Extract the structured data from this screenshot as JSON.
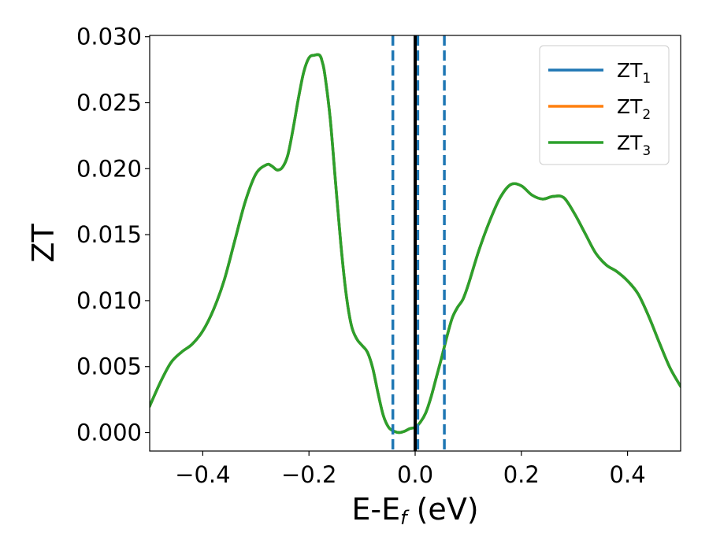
{
  "chart_data": {
    "type": "line",
    "xlabel": {
      "main": "E-E",
      "sub": "f",
      "unit": " (eV)"
    },
    "ylabel": "ZT",
    "xlim": [
      -0.5,
      0.5
    ],
    "ylim": [
      -0.0014,
      0.0301
    ],
    "xticks": [
      -0.4,
      -0.2,
      0.0,
      0.2,
      0.4
    ],
    "xtick_labels": [
      "−0.4",
      "−0.2",
      "0.0",
      "0.2",
      "0.4"
    ],
    "yticks": [
      0.0,
      0.005,
      0.01,
      0.015,
      0.02,
      0.025,
      0.03
    ],
    "ytick_labels": [
      "0.000",
      "0.005",
      "0.010",
      "0.015",
      "0.020",
      "0.025",
      "0.030"
    ],
    "grid": false,
    "legend_position": "top-right",
    "colors": {
      "zt1": "#1f77b4",
      "zt2": "#ff7f0e",
      "zt3": "#2ca02c",
      "fermi": "#000000"
    },
    "vlines": [
      {
        "x": -0.042,
        "style": "dashed",
        "color": "#1f77b4"
      },
      {
        "x": 0.005,
        "style": "dashed",
        "color": "#1f77b4"
      },
      {
        "x": 0.055,
        "style": "dashed",
        "color": "#1f77b4"
      },
      {
        "x": 0.0,
        "style": "solid",
        "color": "#000000"
      }
    ],
    "x": [
      -0.5,
      -0.48,
      -0.46,
      -0.44,
      -0.42,
      -0.4,
      -0.38,
      -0.36,
      -0.34,
      -0.32,
      -0.3,
      -0.28,
      -0.27,
      -0.26,
      -0.25,
      -0.24,
      -0.23,
      -0.22,
      -0.21,
      -0.2,
      -0.19,
      -0.18,
      -0.175,
      -0.17,
      -0.16,
      -0.15,
      -0.14,
      -0.13,
      -0.12,
      -0.11,
      -0.1,
      -0.09,
      -0.08,
      -0.07,
      -0.06,
      -0.05,
      -0.04,
      -0.03,
      -0.02,
      -0.01,
      0.0,
      0.01,
      0.02,
      0.03,
      0.04,
      0.05,
      0.06,
      0.07,
      0.08,
      0.09,
      0.1,
      0.12,
      0.14,
      0.16,
      0.18,
      0.2,
      0.22,
      0.24,
      0.26,
      0.28,
      0.3,
      0.32,
      0.34,
      0.36,
      0.38,
      0.4,
      0.42,
      0.44,
      0.46,
      0.48,
      0.5
    ],
    "series": [
      {
        "name": "ZT",
        "sub": "1",
        "color_key": "zt1",
        "values": [
          0.002,
          0.0038,
          0.0053,
          0.0061,
          0.0067,
          0.0077,
          0.0093,
          0.0115,
          0.0145,
          0.0175,
          0.0196,
          0.0203,
          0.0202,
          0.0199,
          0.0201,
          0.021,
          0.023,
          0.0253,
          0.0273,
          0.0284,
          0.0286,
          0.0286,
          0.0281,
          0.0271,
          0.0238,
          0.019,
          0.0143,
          0.0105,
          0.0081,
          0.0071,
          0.0066,
          0.0061,
          0.0049,
          0.003,
          0.0013,
          0.0004,
          0.0001,
          0.0,
          0.0001,
          0.0003,
          0.0004,
          0.0008,
          0.0015,
          0.0027,
          0.0042,
          0.0057,
          0.0073,
          0.0087,
          0.0095,
          0.0101,
          0.0112,
          0.0138,
          0.016,
          0.0178,
          0.0188,
          0.0187,
          0.018,
          0.0177,
          0.0179,
          0.0178,
          0.0166,
          0.0151,
          0.0136,
          0.0127,
          0.0122,
          0.0115,
          0.0105,
          0.0088,
          0.0068,
          0.0049,
          0.0035
        ]
      },
      {
        "name": "ZT",
        "sub": "2",
        "color_key": "zt2",
        "values": [
          0.002,
          0.0038,
          0.0053,
          0.0061,
          0.0067,
          0.0077,
          0.0093,
          0.0115,
          0.0145,
          0.0175,
          0.0196,
          0.0203,
          0.0202,
          0.0199,
          0.0201,
          0.021,
          0.023,
          0.0253,
          0.0273,
          0.0284,
          0.0286,
          0.0286,
          0.0281,
          0.0271,
          0.0238,
          0.019,
          0.0143,
          0.0105,
          0.0081,
          0.0071,
          0.0066,
          0.0061,
          0.0049,
          0.003,
          0.0013,
          0.0004,
          0.0001,
          0.0,
          0.0001,
          0.0003,
          0.0004,
          0.0008,
          0.0015,
          0.0027,
          0.0042,
          0.0057,
          0.0073,
          0.0087,
          0.0095,
          0.0101,
          0.0112,
          0.0138,
          0.016,
          0.0178,
          0.0188,
          0.0187,
          0.018,
          0.0177,
          0.0179,
          0.0178,
          0.0166,
          0.0151,
          0.0136,
          0.0127,
          0.0122,
          0.0115,
          0.0105,
          0.0088,
          0.0068,
          0.0049,
          0.0035
        ]
      },
      {
        "name": "ZT",
        "sub": "3",
        "color_key": "zt3",
        "values": [
          0.002,
          0.0038,
          0.0053,
          0.0061,
          0.0067,
          0.0077,
          0.0093,
          0.0115,
          0.0145,
          0.0175,
          0.0196,
          0.0203,
          0.0202,
          0.0199,
          0.0201,
          0.021,
          0.023,
          0.0253,
          0.0273,
          0.0284,
          0.0286,
          0.0286,
          0.0281,
          0.0271,
          0.0238,
          0.019,
          0.0143,
          0.0105,
          0.0081,
          0.0071,
          0.0066,
          0.0061,
          0.0049,
          0.003,
          0.0013,
          0.0004,
          0.0001,
          0.0,
          0.0001,
          0.0003,
          0.0004,
          0.0008,
          0.0015,
          0.0027,
          0.0042,
          0.0057,
          0.0073,
          0.0087,
          0.0095,
          0.0101,
          0.0112,
          0.0138,
          0.016,
          0.0178,
          0.0188,
          0.0187,
          0.018,
          0.0177,
          0.0179,
          0.0178,
          0.0166,
          0.0151,
          0.0136,
          0.0127,
          0.0122,
          0.0115,
          0.0105,
          0.0088,
          0.0068,
          0.0049,
          0.0035
        ]
      }
    ]
  }
}
